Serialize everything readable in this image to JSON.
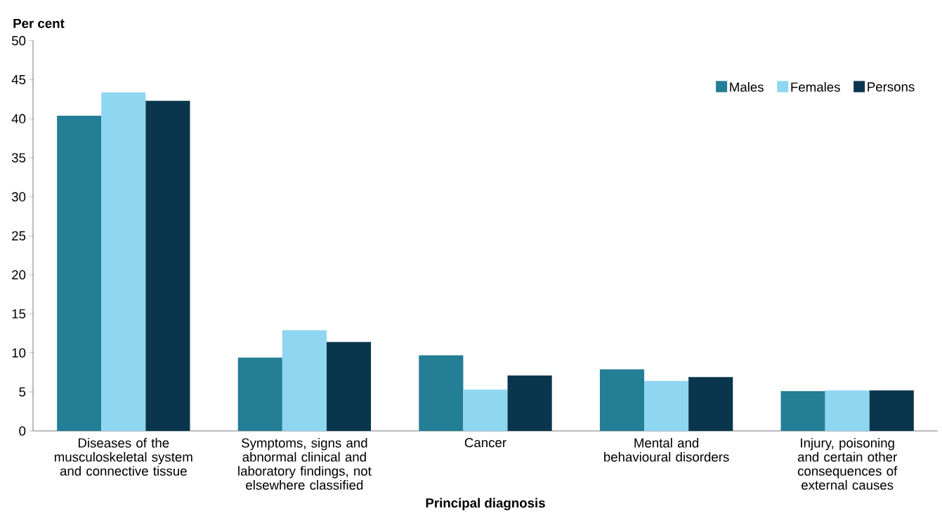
{
  "chart_data": {
    "type": "bar",
    "xlabel": "Principal diagnosis",
    "ylabel": "Per cent",
    "categories": [
      "Diseases of the musculoskeletal system and connective tissue",
      "Symptoms, signs and abnormal clinical and laboratory findings, not elsewhere classified",
      "Cancer",
      "Mental and behavioural disorders",
      "Injury, poisoning and certain other consequences of external causes"
    ],
    "series": [
      {
        "name": "Males",
        "color": "#237e96",
        "values": [
          40.4,
          9.4,
          9.7,
          7.9,
          5.1
        ]
      },
      {
        "name": "Females",
        "color": "#8fd6f0",
        "values": [
          43.4,
          12.9,
          5.3,
          6.4,
          5.2
        ]
      },
      {
        "name": "Persons",
        "color": "#0a364d",
        "values": [
          42.3,
          11.4,
          7.1,
          6.9,
          5.2
        ]
      }
    ],
    "ylim": [
      0,
      50
    ],
    "yticks": [
      0,
      5,
      10,
      15,
      20,
      25,
      30,
      35,
      40,
      45,
      50
    ],
    "legend": "top right"
  }
}
